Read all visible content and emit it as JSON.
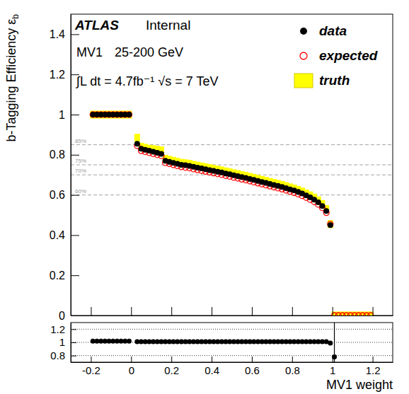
{
  "chart_data": [
    {
      "type": "scatter",
      "y_label": "b-Tagging Efficiency εb",
      "annotations": [
        "ATLAS",
        "Internal",
        "MV1",
        "25-200 GeV",
        "∫L dt = 4.7fb⁻¹ √s = 7 TeV"
      ],
      "reference_lines": [
        {
          "value": 0.85,
          "label": "85%"
        },
        {
          "value": 0.75,
          "label": "75%"
        },
        {
          "value": 0.7,
          "label": "70%"
        },
        {
          "value": 0.6,
          "label": "60%"
        }
      ],
      "x": [
        -0.19,
        -0.17,
        -0.15,
        -0.13,
        -0.11,
        -0.09,
        -0.07,
        -0.05,
        -0.03,
        -0.01,
        0.03,
        0.05,
        0.07,
        0.09,
        0.11,
        0.13,
        0.15,
        0.17,
        0.19,
        0.21,
        0.23,
        0.25,
        0.27,
        0.29,
        0.31,
        0.33,
        0.35,
        0.37,
        0.39,
        0.41,
        0.43,
        0.45,
        0.47,
        0.49,
        0.51,
        0.53,
        0.55,
        0.57,
        0.59,
        0.61,
        0.63,
        0.65,
        0.67,
        0.69,
        0.71,
        0.73,
        0.75,
        0.77,
        0.79,
        0.81,
        0.83,
        0.85,
        0.87,
        0.89,
        0.91,
        0.93,
        0.95,
        0.97,
        0.99,
        1.01,
        1.03,
        1.05,
        1.07,
        1.09,
        1.11,
        1.13,
        1.15,
        1.17,
        1.19
      ],
      "series": [
        {
          "name": "data",
          "color": "#000000",
          "marker": "filled_circle",
          "values": [
            1,
            1,
            1,
            1,
            1,
            1,
            1,
            1,
            1,
            1,
            0.855,
            0.83,
            0.825,
            0.82,
            0.815,
            0.81,
            0.805,
            0.77,
            0.765,
            0.76,
            0.755,
            0.75,
            0.748,
            0.745,
            0.74,
            0.736,
            0.732,
            0.728,
            0.724,
            0.72,
            0.716,
            0.712,
            0.707,
            0.703,
            0.698,
            0.694,
            0.689,
            0.685,
            0.68,
            0.675,
            0.67,
            0.665,
            0.66,
            0.655,
            0.65,
            0.645,
            0.64,
            0.634,
            0.628,
            0.622,
            0.615,
            0.607,
            0.598,
            0.588,
            0.577,
            0.563,
            0.545,
            0.52,
            0.45,
            null,
            null,
            null,
            null,
            null,
            null,
            null,
            null,
            null,
            null
          ]
        },
        {
          "name": "expected",
          "color": "#ff0000",
          "marker": "open_circle",
          "values": [
            1,
            1,
            1,
            1,
            1,
            1,
            1,
            1,
            1,
            1,
            0.845,
            0.82,
            0.815,
            0.81,
            0.805,
            0.8,
            0.795,
            0.76,
            0.755,
            0.75,
            0.745,
            0.74,
            0.737,
            0.734,
            0.729,
            0.725,
            0.721,
            0.717,
            0.713,
            0.709,
            0.705,
            0.701,
            0.696,
            0.692,
            0.687,
            0.683,
            0.678,
            0.674,
            0.669,
            0.664,
            0.659,
            0.654,
            0.649,
            0.644,
            0.639,
            0.634,
            0.629,
            0.623,
            0.617,
            0.611,
            0.604,
            0.596,
            0.587,
            0.577,
            0.566,
            0.553,
            0.536,
            0.512,
            0.455,
            0,
            0,
            0,
            0,
            0,
            0,
            0,
            0,
            0,
            0
          ]
        },
        {
          "name": "truth",
          "color": "#ffff00",
          "marker": "box",
          "values": [
            1,
            1,
            1,
            1,
            1,
            1,
            1,
            1,
            1,
            1,
            0.885,
            0.84,
            0.835,
            0.83,
            0.828,
            0.825,
            0.822,
            0.78,
            0.775,
            0.77,
            0.765,
            0.76,
            0.758,
            0.755,
            0.75,
            0.746,
            0.742,
            0.738,
            0.734,
            0.73,
            0.726,
            0.722,
            0.717,
            0.713,
            0.708,
            0.704,
            0.699,
            0.695,
            0.69,
            0.685,
            0.68,
            0.675,
            0.67,
            0.665,
            0.66,
            0.655,
            0.65,
            0.644,
            0.638,
            0.632,
            0.625,
            0.617,
            0.608,
            0.598,
            0.587,
            0.573,
            0.555,
            0.53,
            0.455,
            0,
            0,
            0,
            0,
            0,
            0,
            0,
            0,
            0,
            0
          ]
        }
      ],
      "xlim": [
        -0.3,
        1.3
      ],
      "xticks": [
        -0.2,
        0,
        0.2,
        0.4,
        0.6,
        0.8,
        1,
        1.2
      ],
      "ylim": [
        0,
        1.5
      ],
      "yticks": [
        0,
        0.2,
        0.4,
        0.6,
        0.8,
        1,
        1.2,
        1.4
      ],
      "tick_labels": "y",
      "legend": "upper right"
    },
    {
      "type": "scatter",
      "x_label": "MV1 weight",
      "x": [
        -0.19,
        -0.17,
        -0.15,
        -0.13,
        -0.11,
        -0.09,
        -0.07,
        -0.05,
        -0.03,
        -0.01,
        0.03,
        0.05,
        0.07,
        0.09,
        0.11,
        0.13,
        0.15,
        0.17,
        0.19,
        0.21,
        0.23,
        0.25,
        0.27,
        0.29,
        0.31,
        0.33,
        0.35,
        0.37,
        0.39,
        0.41,
        0.43,
        0.45,
        0.47,
        0.49,
        0.51,
        0.53,
        0.55,
        0.57,
        0.59,
        0.61,
        0.63,
        0.65,
        0.67,
        0.69,
        0.71,
        0.73,
        0.75,
        0.77,
        0.79,
        0.81,
        0.83,
        0.85,
        0.87,
        0.89,
        0.91,
        0.93,
        0.95,
        0.97,
        0.99,
        1.01
      ],
      "values": [
        1.02,
        1.02,
        1.02,
        1.02,
        1.02,
        1.02,
        1.02,
        1.02,
        1.02,
        1.02,
        1.01,
        1.01,
        1.01,
        1.01,
        1.01,
        1.01,
        1.01,
        1.01,
        1.01,
        1.01,
        1.01,
        1.01,
        1.01,
        1.01,
        1.01,
        1.01,
        1.01,
        1.01,
        1.01,
        1.01,
        1.01,
        1.01,
        1.01,
        1.01,
        1.01,
        1.01,
        1.01,
        1.01,
        1.01,
        1.01,
        1.01,
        1.01,
        1.01,
        1.01,
        1.01,
        1.01,
        1.01,
        1.01,
        1.01,
        1.01,
        1.01,
        1.01,
        1.01,
        1.01,
        1.01,
        1.01,
        1.01,
        1.01,
        0.99,
        0.78
      ],
      "errors": [
        null,
        null,
        null,
        null,
        null,
        null,
        null,
        null,
        null,
        null,
        null,
        null,
        null,
        null,
        null,
        null,
        null,
        null,
        null,
        null,
        null,
        null,
        null,
        null,
        null,
        null,
        null,
        null,
        null,
        null,
        null,
        null,
        null,
        null,
        null,
        null,
        null,
        null,
        null,
        null,
        null,
        null,
        null,
        null,
        null,
        null,
        null,
        null,
        null,
        null,
        null,
        null,
        null,
        null,
        null,
        null,
        null,
        null,
        null,
        0.6
      ],
      "color": "#000000",
      "marker": "filled_circle",
      "xlim": [
        -0.3,
        1.3
      ],
      "xticks": [
        -0.2,
        0,
        0.2,
        0.4,
        0.6,
        0.8,
        1,
        1.2
      ],
      "ylim": [
        0.7,
        1.3
      ],
      "yticks": [
        0.8,
        1,
        1.2
      ],
      "grid": true
    }
  ]
}
